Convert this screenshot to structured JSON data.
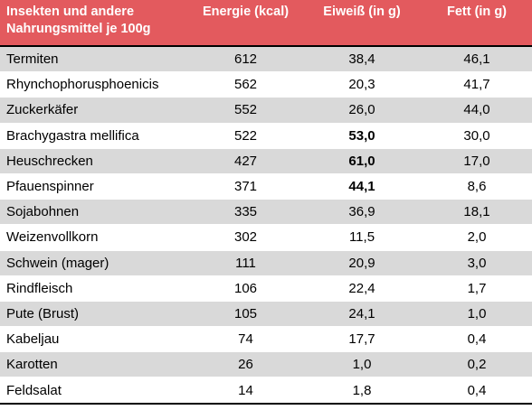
{
  "header": {
    "col1": "Insekten und andere Nahrungsmittel je 100g",
    "col1_line1": "Insekten und andere",
    "col1_line2": "Nahrungsmittel je 100g",
    "col2": "Energie (kcal)",
    "col3": "Eiweiß (in g)",
    "col4": "Fett (in g)"
  },
  "rows": [
    {
      "name": "Termiten",
      "energy": "612",
      "protein": "38,4",
      "fat": "46,1",
      "protein_bold": false
    },
    {
      "name": "Rhynchophorusphoenicis",
      "energy": "562",
      "protein": "20,3",
      "fat": "41,7",
      "protein_bold": false
    },
    {
      "name": "Zuckerkäfer",
      "energy": "552",
      "protein": "26,0",
      "fat": "44,0",
      "protein_bold": false
    },
    {
      "name": "Brachygastra mellifica",
      "energy": "522",
      "protein": "53,0",
      "fat": "30,0",
      "protein_bold": true
    },
    {
      "name": "Heuschrecken",
      "energy": "427",
      "protein": "61,0",
      "fat": "17,0",
      "protein_bold": true
    },
    {
      "name": "Pfauenspinner",
      "energy": "371",
      "protein": "44,1",
      "fat": "8,6",
      "protein_bold": true
    },
    {
      "name": "Sojabohnen",
      "energy": "335",
      "protein": "36,9",
      "fat": "18,1",
      "protein_bold": false
    },
    {
      "name": "Weizenvollkorn",
      "energy": "302",
      "protein": "11,5",
      "fat": "2,0",
      "protein_bold": false
    },
    {
      "name": "Schwein (mager)",
      "energy": "111",
      "protein": "20,9",
      "fat": "3,0",
      "protein_bold": false
    },
    {
      "name": "Rindfleisch",
      "energy": "106",
      "protein": "22,4",
      "fat": "1,7",
      "protein_bold": false
    },
    {
      "name": "Pute (Brust)",
      "energy": "105",
      "protein": "24,1",
      "fat": "1,0",
      "protein_bold": false
    },
    {
      "name": "Kabeljau",
      "energy": "74",
      "protein": "17,7",
      "fat": "0,4",
      "protein_bold": false
    },
    {
      "name": "Karotten",
      "energy": "26",
      "protein": "1,0",
      "fat": "0,2",
      "protein_bold": false
    },
    {
      "name": "Feldsalat",
      "energy": "14",
      "protein": "1,8",
      "fat": "0,4",
      "protein_bold": false
    }
  ],
  "colors": {
    "header_bg": "#e35a5e",
    "header_text": "#ffffff",
    "row_alt_bg": "#d9d9d9",
    "row_bg": "#ffffff",
    "rule": "#000000"
  }
}
